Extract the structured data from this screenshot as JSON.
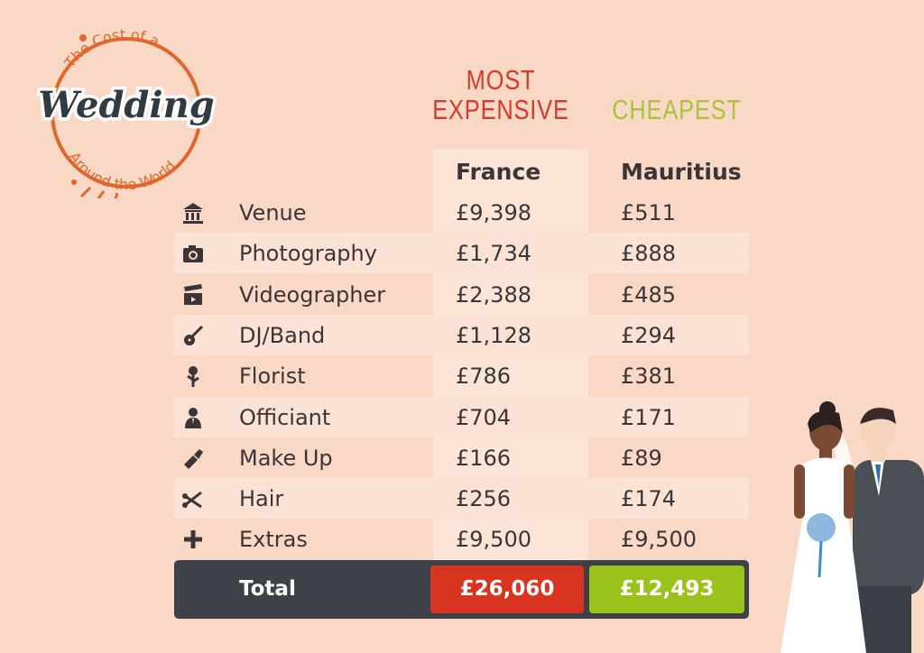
{
  "logo": {
    "top_text": "The Cost of a",
    "main_text": "Wedding",
    "bottom_text": "Around the World"
  },
  "headers": {
    "most_expensive": "MOST EXPENSIVE",
    "cheapest": "CHEAPEST"
  },
  "countries": {
    "most_expensive": "France",
    "cheapest": "Mauritius"
  },
  "rows": [
    {
      "icon": "bank-building-icon",
      "label": "Venue",
      "france": "£9,398",
      "mauritius": "£511"
    },
    {
      "icon": "camera-icon",
      "label": "Photography",
      "france": "£1,734",
      "mauritius": "£888"
    },
    {
      "icon": "clapperboard-icon",
      "label": "Videographer",
      "france": "£2,388",
      "mauritius": "£485"
    },
    {
      "icon": "guitar-icon",
      "label": "DJ/Band",
      "france": "£1,128",
      "mauritius": "£294"
    },
    {
      "icon": "flower-icon",
      "label": "Florist",
      "france": "£786",
      "mauritius": "£381"
    },
    {
      "icon": "person-icon",
      "label": "Officiant",
      "france": "£704",
      "mauritius": "£171"
    },
    {
      "icon": "lipstick-icon",
      "label": "Make Up",
      "france": "£166",
      "mauritius": "£89"
    },
    {
      "icon": "scissors-icon",
      "label": "Hair",
      "france": "£256",
      "mauritius": "£174"
    },
    {
      "icon": "plus-icon",
      "label": "Extras",
      "france": "£9,500",
      "mauritius": "£9,500"
    }
  ],
  "total": {
    "label": "Total",
    "france": "£26,060",
    "mauritius": "£12,493"
  },
  "colors": {
    "background": "#f9d8c5",
    "expensive": "#d8341f",
    "cheap": "#9bc21b",
    "dark": "#3d4248",
    "logo_orange": "#e0662a"
  }
}
